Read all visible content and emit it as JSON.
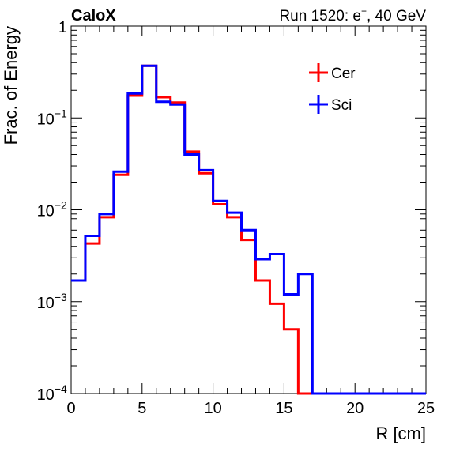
{
  "chart_data": {
    "type": "line",
    "title_left": "CaloX",
    "title_right": "Run 1520: e",
    "title_right_sup": "+",
    "title_right_suffix": ", 40 GeV",
    "xlabel": "R [cm]",
    "ylabel": "Frac. of Energy",
    "xlim": [
      0,
      25
    ],
    "ylim": [
      0.0001,
      1
    ],
    "yscale": "log",
    "grid": false,
    "legend_position": "top-right",
    "x_ticks": [
      "0",
      "5",
      "10",
      "15",
      "20",
      "25"
    ],
    "y_ticks": [
      {
        "base": "1",
        "exp": ""
      },
      {
        "base": "10",
        "exp": "−1"
      },
      {
        "base": "10",
        "exp": "−2"
      },
      {
        "base": "10",
        "exp": "−3"
      },
      {
        "base": "10",
        "exp": "−4"
      }
    ],
    "bin_edges": [
      0,
      1,
      2,
      3,
      4,
      5,
      6,
      7,
      8,
      9,
      10,
      11,
      12,
      13,
      14,
      15,
      16,
      17,
      18,
      19,
      20,
      21,
      22,
      23,
      24,
      25
    ],
    "series": [
      {
        "name": "Cer",
        "color": "#ff0000",
        "values": [
          0.0017,
          0.0043,
          0.0083,
          0.024,
          0.175,
          0.37,
          0.168,
          0.147,
          0.043,
          0.025,
          0.0115,
          0.0083,
          0.0047,
          0.0017,
          0.00095,
          0.0005,
          0,
          0,
          0,
          0,
          0,
          0,
          0,
          0,
          0
        ]
      },
      {
        "name": "Sci",
        "color": "#0000ff",
        "values": [
          0.0017,
          0.0052,
          0.009,
          0.026,
          0.185,
          0.37,
          0.15,
          0.14,
          0.04,
          0.027,
          0.0125,
          0.0093,
          0.006,
          0.0029,
          0.0033,
          0.0012,
          0.002,
          0,
          0,
          0,
          0,
          0,
          0,
          0,
          0
        ]
      }
    ]
  }
}
